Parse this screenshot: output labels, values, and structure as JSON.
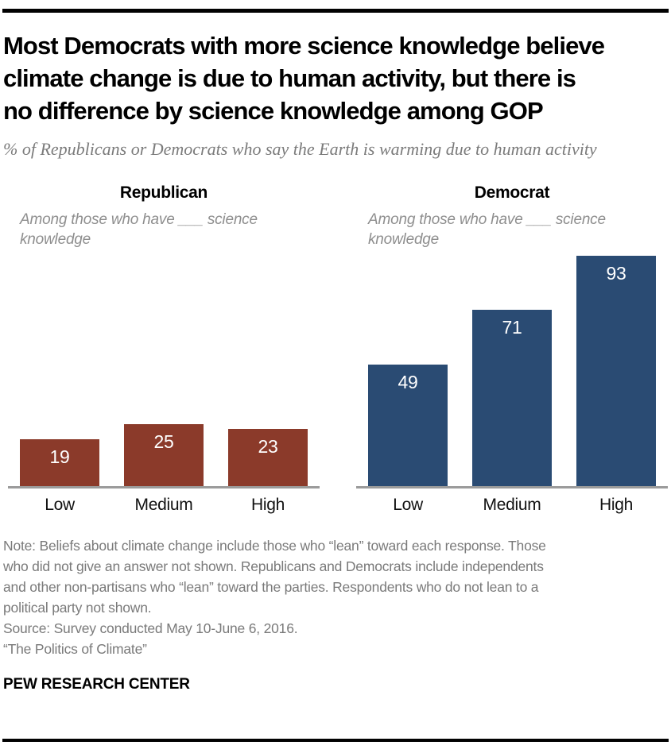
{
  "header": {
    "title_lines": [
      "Most Democrats with more science knowledge believe",
      "climate change is due to human activity, but there is",
      "no difference by science knowledge among GOP"
    ],
    "subtitle": "% of Republicans or Democrats who say the Earth is warming due to human activity"
  },
  "chart_data": {
    "type": "bar",
    "unit": "%",
    "categories": [
      "Low",
      "Medium",
      "High"
    ],
    "panel_note": "Among those who have ___ science knowledge",
    "series": [
      {
        "name": "Republican",
        "values": [
          19,
          25,
          23
        ],
        "color": "#8b3a2a"
      },
      {
        "name": "Democrat",
        "values": [
          49,
          71,
          93
        ],
        "color": "#2a4b73"
      }
    ],
    "ylim": [
      0,
      100
    ],
    "grid": false,
    "value_label_position": "inside-top",
    "value_label_color": "#ffffff",
    "axis_color": "#9b9b9b"
  },
  "footer": {
    "note_lines": [
      "Note: Beliefs about climate change include those who “lean” toward each response. Those",
      "who did not give an answer not shown. Republicans and Democrats include independents",
      "and other non-partisans who “lean” toward the parties. Respondents who do not lean to a",
      "political party not shown."
    ],
    "source": "Source: Survey conducted May 10-June 6, 2016.",
    "report_title": "“The Politics of Climate”",
    "brand": "PEW RESEARCH CENTER"
  }
}
